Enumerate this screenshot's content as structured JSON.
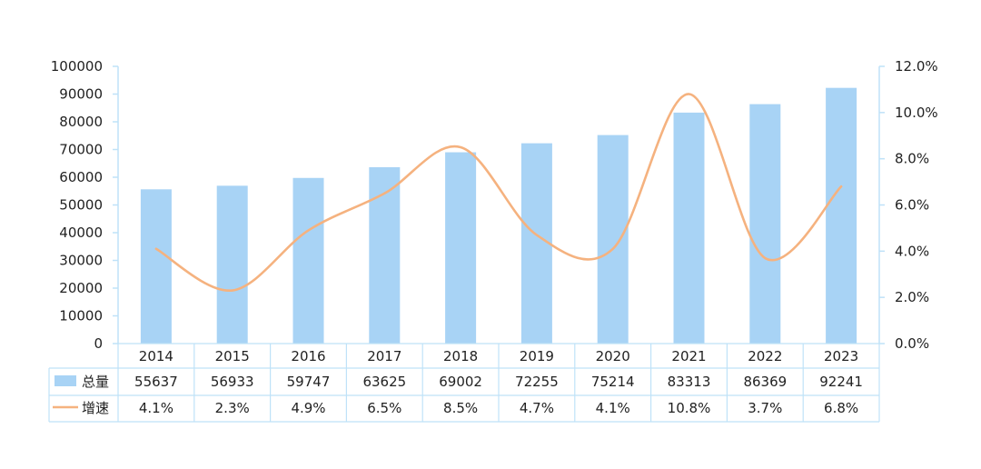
{
  "colors": {
    "bar": "#a8d3f5",
    "line": "#f5b27f",
    "axis": "#bfe2f8",
    "text": "#222222",
    "background": "#ffffff"
  },
  "chart_data": {
    "type": "bar",
    "categories": [
      "2014",
      "2015",
      "2016",
      "2017",
      "2018",
      "2019",
      "2020",
      "2021",
      "2022",
      "2023"
    ],
    "series": [
      {
        "name": "总量",
        "type": "bar",
        "axis": "left",
        "values": [
          55637,
          56933,
          59747,
          63625,
          69002,
          72255,
          75214,
          83313,
          86369,
          92241
        ]
      },
      {
        "name": "增速",
        "type": "line",
        "axis": "right",
        "smooth": true,
        "values": [
          4.1,
          2.3,
          4.9,
          6.5,
          8.5,
          4.7,
          4.1,
          10.8,
          3.7,
          6.8
        ]
      }
    ],
    "data_table": {
      "rows": [
        {
          "label": "总量",
          "cells": [
            "55637",
            "56933",
            "59747",
            "63625",
            "69002",
            "72255",
            "75214",
            "83313",
            "86369",
            "92241"
          ]
        },
        {
          "label": "增速",
          "cells": [
            "4.1%",
            "2.3%",
            "4.9%",
            "6.5%",
            "8.5%",
            "4.7%",
            "4.1%",
            "10.8%",
            "3.7%",
            "6.8%"
          ]
        }
      ]
    },
    "y_left": {
      "ylim": [
        0,
        100000
      ],
      "ticks": [
        "0",
        "10000",
        "20000",
        "30000",
        "40000",
        "50000",
        "60000",
        "70000",
        "80000",
        "90000",
        "100000"
      ]
    },
    "y_right": {
      "ylim": [
        0,
        12
      ],
      "ticks": [
        "0.0%",
        "2.0%",
        "4.0%",
        "6.0%",
        "8.0%",
        "10.0%",
        "12.0%"
      ]
    },
    "title": "",
    "xlabel": "",
    "grid": false,
    "legend": "data-table"
  }
}
